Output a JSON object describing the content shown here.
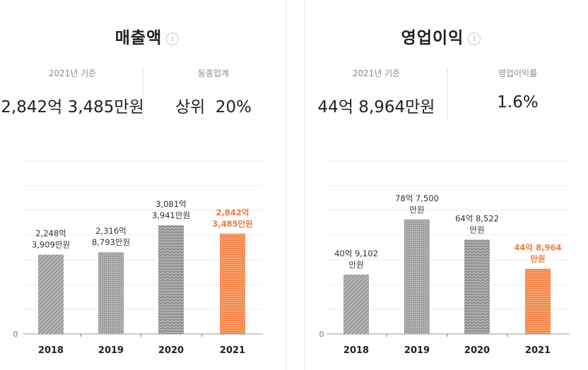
{
  "panels": [
    {
      "title": "매출액",
      "info_icon": "i",
      "stats": [
        {
          "label": "2021년 기준",
          "value": "2,842억 3,485만원"
        },
        {
          "label": "동종업계",
          "value": "상위  20%"
        }
      ]
    },
    {
      "title": "영업이익",
      "info_icon": "i",
      "stats": [
        {
          "label": "2021년 기준",
          "value": "44억 8,964만원"
        },
        {
          "label": "영업이익률",
          "value": "1.6%"
        }
      ]
    }
  ],
  "colors": {
    "gray_bar": "#9a9a9a",
    "highlight_bar": "#f4854a",
    "highlight_text": "#f07a3c"
  },
  "chart_data": [
    {
      "type": "bar",
      "categories": [
        "2018",
        "2019",
        "2020",
        "2021"
      ],
      "values": [
        2248.3909,
        2316.8793,
        3081.3941,
        2842.3485
      ],
      "data_labels": [
        [
          "2,248억",
          "3,909만원"
        ],
        [
          "2,316억",
          "8,793만원"
        ],
        [
          "3,081억",
          "3,941만원"
        ],
        [
          "2,842억",
          "3,485만원"
        ]
      ],
      "highlight_index": 3,
      "y_tick_labels": [
        "0"
      ],
      "ylim": [
        0,
        4900
      ],
      "grid": true
    },
    {
      "type": "bar",
      "categories": [
        "2018",
        "2019",
        "2020",
        "2021"
      ],
      "values": [
        40.9102,
        78.75,
        64.8522,
        44.8964
      ],
      "data_labels": [
        [
          "40억 9,102",
          "만원"
        ],
        [
          "78억 7,500",
          "만원"
        ],
        [
          "64억 8,522",
          "만원"
        ],
        [
          "44억 8,964",
          "만원"
        ]
      ],
      "highlight_index": 3,
      "y_tick_labels": [
        "0"
      ],
      "ylim": [
        0,
        119
      ],
      "grid": true
    }
  ]
}
